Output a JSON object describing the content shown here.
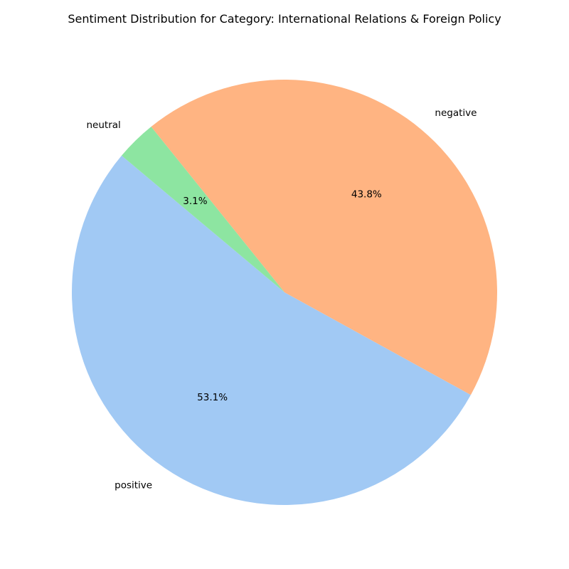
{
  "chart_data": {
    "type": "pie",
    "title": "Sentiment Distribution for Category: International Relations & Foreign Policy",
    "labels": [
      "positive",
      "negative",
      "neutral"
    ],
    "values": [
      53.1,
      43.8,
      3.1
    ],
    "value_labels": [
      "53.1%",
      "43.8%",
      "3.1%"
    ],
    "colors": [
      "#a1c9f4",
      "#ffb482",
      "#8de5a1"
    ],
    "start_angle_deg": 140,
    "direction": "counterclockwise",
    "legend": "none"
  }
}
